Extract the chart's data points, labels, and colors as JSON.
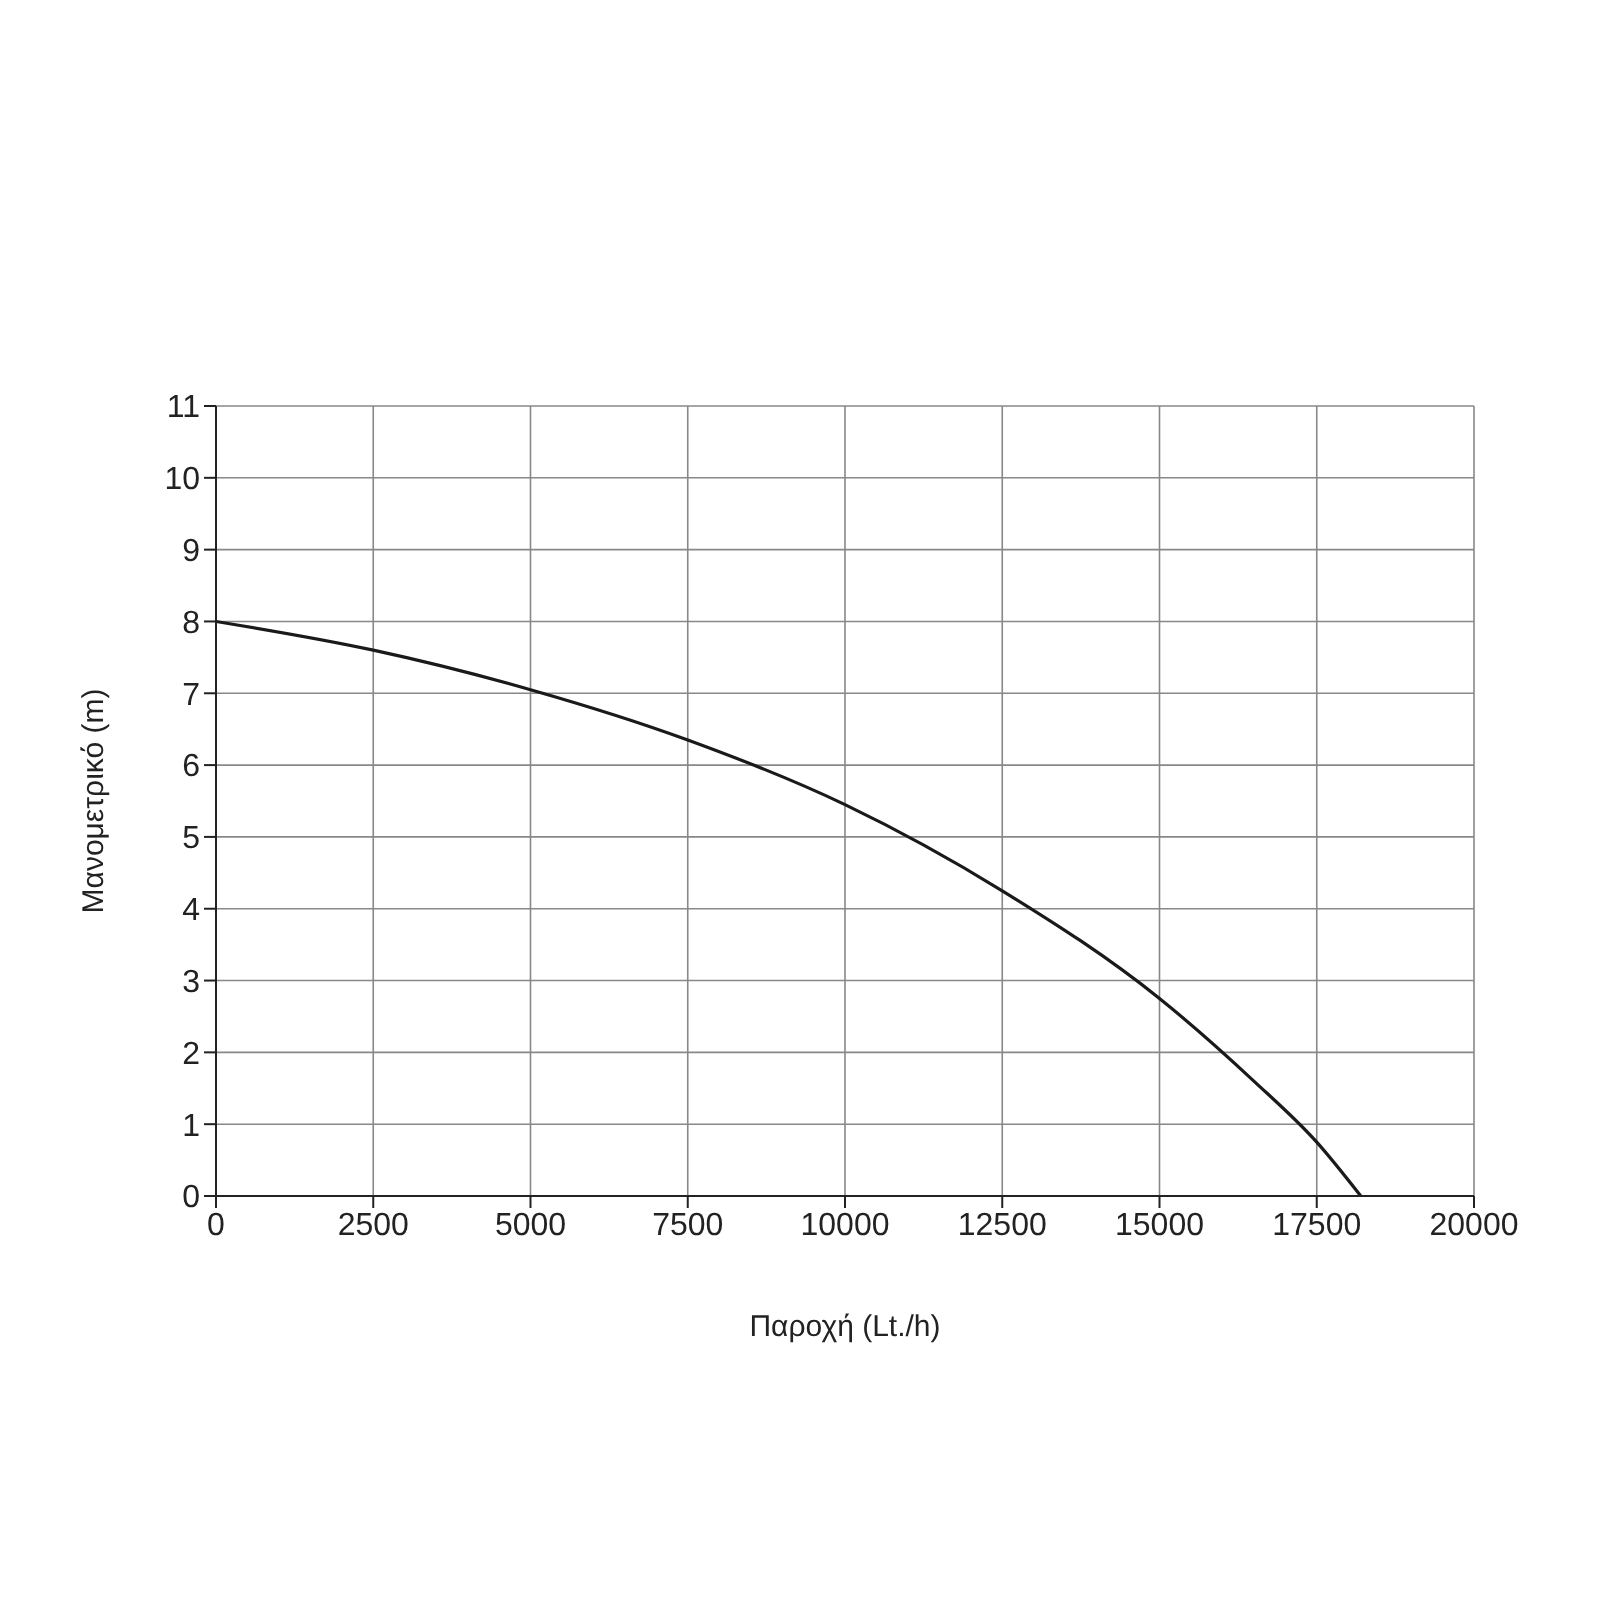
{
  "chart_data": {
    "type": "line",
    "xlabel": "Παροχή (Lt./h)",
    "ylabel": "Μανομετρικό  (m)",
    "x": [
      0,
      2500,
      5000,
      7500,
      10000,
      12500,
      15000,
      16500,
      17500,
      18200
    ],
    "series": [
      {
        "color": "#1a1a1a",
        "values": [
          8.0,
          7.6,
          7.05,
          6.35,
          5.45,
          4.25,
          2.75,
          1.6,
          0.75,
          0
        ]
      }
    ],
    "xlim": [
      0,
      20000
    ],
    "xticks": [
      0,
      2500,
      5000,
      7500,
      10000,
      12500,
      15000,
      17500,
      20000
    ],
    "ylim": [
      0,
      11
    ],
    "yticks": [
      0,
      1,
      2,
      3,
      4,
      5,
      6,
      7,
      8,
      9,
      10,
      11
    ],
    "grid": true,
    "marker": "none",
    "line_style": "solid",
    "legend": false
  }
}
